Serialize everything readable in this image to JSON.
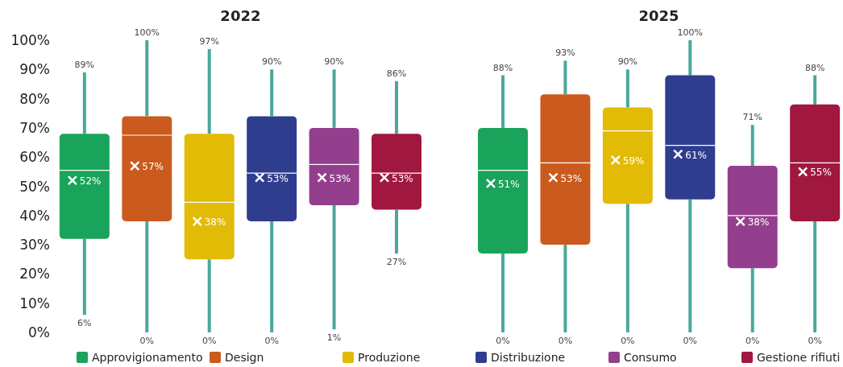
{
  "chart_data": {
    "type": "box",
    "categories": [
      "2022",
      "2025"
    ],
    "ylim": [
      0,
      100
    ],
    "yticks": [
      {
        "value": 0,
        "label": "0%"
      },
      {
        "value": 10,
        "label": "10%"
      },
      {
        "value": 20,
        "label": "20%"
      },
      {
        "value": 30,
        "label": "30%"
      },
      {
        "value": 40,
        "label": "40%"
      },
      {
        "value": 50,
        "label": "50%"
      },
      {
        "value": 60,
        "label": "60%"
      },
      {
        "value": 70,
        "label": "70%"
      },
      {
        "value": 80,
        "label": "80%"
      },
      {
        "value": 90,
        "label": "90%"
      },
      {
        "value": 100,
        "label": "100%"
      }
    ],
    "grid": false,
    "legend": "bottom",
    "annotations": [
      "89%",
      "6%",
      "52%",
      "88%",
      "0%",
      "51%",
      "100%",
      "0%",
      "57%",
      "93%",
      "0%",
      "53%",
      "97%",
      "0%",
      "38%",
      "90%",
      "0%",
      "59%",
      "90%",
      "0%",
      "53%",
      "100%",
      "0%",
      "61%",
      "90%",
      "1%",
      "53%",
      "71%",
      "0%",
      "38%",
      "86%",
      "27%",
      "53%",
      "88%",
      "0%",
      "55%"
    ],
    "series": [
      {
        "name": "Approvigionamento",
        "color": "#1aa35a",
        "boxes": [
          {
            "low": 6,
            "q1": 32,
            "median": 55.5,
            "q3": 68,
            "high": 89,
            "mean": 52
          },
          {
            "low": 0,
            "q1": 27,
            "median": 55.5,
            "q3": 70,
            "high": 88,
            "mean": 51
          }
        ]
      },
      {
        "name": "Design",
        "color": "#cb5a1e",
        "boxes": [
          {
            "low": 0,
            "q1": 38,
            "median": 67.5,
            "q3": 74,
            "high": 100,
            "mean": 57
          },
          {
            "low": 0,
            "q1": 30,
            "median": 58,
            "q3": 81.5,
            "high": 93,
            "mean": 53
          }
        ]
      },
      {
        "name": "Produzione",
        "color": "#e2bb06",
        "boxes": [
          {
            "low": 0,
            "q1": 25,
            "median": 44.5,
            "q3": 68,
            "high": 97,
            "mean": 38
          },
          {
            "low": 0,
            "q1": 44,
            "median": 69,
            "q3": 77,
            "high": 90,
            "mean": 59
          }
        ]
      },
      {
        "name": "Distribuzione",
        "color": "#2f3d8f",
        "boxes": [
          {
            "low": 0,
            "q1": 38,
            "median": 54.5,
            "q3": 74,
            "high": 90,
            "mean": 53
          },
          {
            "low": 0,
            "q1": 45.5,
            "median": 64,
            "q3": 88,
            "high": 100,
            "mean": 61
          }
        ]
      },
      {
        "name": "Consumo",
        "color": "#943f8e",
        "boxes": [
          {
            "low": 1,
            "q1": 43.5,
            "median": 57.5,
            "q3": 70,
            "high": 90,
            "mean": 53
          },
          {
            "low": 0,
            "q1": 22,
            "median": 40,
            "q3": 57,
            "high": 71,
            "mean": 38
          }
        ]
      },
      {
        "name": "Gestione rifiuti",
        "color": "#a0173f",
        "boxes": [
          {
            "low": 27,
            "q1": 42,
            "median": 54.5,
            "q3": 68,
            "high": 86,
            "mean": 53
          },
          {
            "low": 0,
            "q1": 38,
            "median": 58,
            "q3": 78,
            "high": 88,
            "mean": 55
          }
        ]
      }
    ]
  }
}
